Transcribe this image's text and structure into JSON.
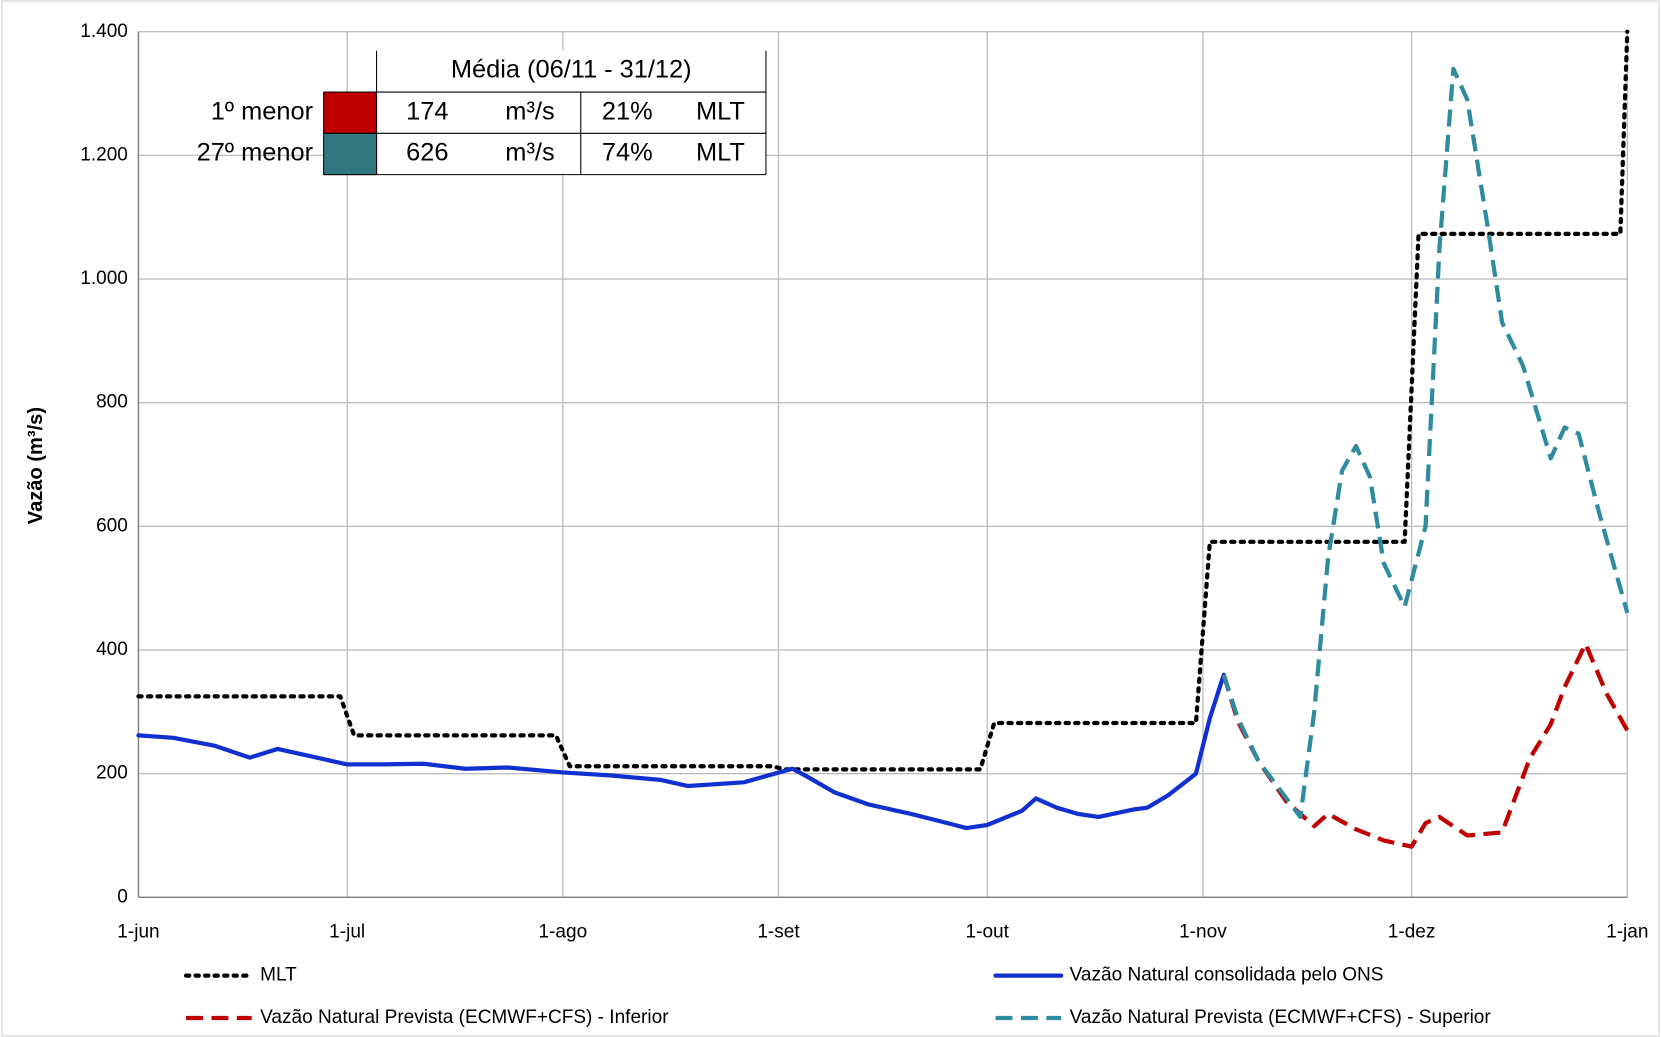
{
  "chart_data": {
    "type": "line",
    "y_label": "Vazão (m³/s)",
    "xlim": [
      0,
      214
    ],
    "xticks": [
      {
        "value": 0,
        "label": "1-jun"
      },
      {
        "value": 30,
        "label": "1-jul"
      },
      {
        "value": 61,
        "label": "1-ago"
      },
      {
        "value": 92,
        "label": "1-set"
      },
      {
        "value": 122,
        "label": "1-out"
      },
      {
        "value": 153,
        "label": "1-nov"
      },
      {
        "value": 183,
        "label": "1-dez"
      },
      {
        "value": 214,
        "label": "1-jan"
      }
    ],
    "ylim": [
      0,
      1400
    ],
    "yticks": [
      0,
      200,
      400,
      600,
      800,
      {
        "value": 1000,
        "label": "1.000"
      },
      {
        "value": 1200,
        "label": "1.200"
      },
      {
        "value": 1400,
        "label": "1.400"
      }
    ],
    "grid": true,
    "series": [
      {
        "name": "MLT",
        "color": "#000000",
        "line_style": "dotted",
        "x": [
          0,
          29,
          31,
          60,
          62,
          91,
          93,
          121,
          123,
          152,
          154,
          182,
          184,
          213,
          214
        ],
        "values": [
          325,
          325,
          262,
          262,
          212,
          212,
          207,
          207,
          282,
          282,
          575,
          575,
          1073,
          1073,
          1400
        ]
      },
      {
        "name": "Vazão Natural consolidada pelo ONS",
        "color": "#1030d0",
        "line_style": "solid",
        "x": [
          0,
          5,
          11,
          16,
          20,
          26,
          30,
          35,
          41,
          47,
          53,
          61,
          68,
          75,
          79,
          87,
          94,
          96,
          100,
          105,
          111,
          117,
          119,
          122,
          127,
          129,
          132,
          135,
          138,
          143,
          145,
          148,
          152,
          154,
          156
        ],
        "values": [
          262,
          258,
          245,
          226,
          240,
          225,
          215,
          215,
          216,
          208,
          210,
          202,
          197,
          190,
          180,
          186,
          208,
          196,
          170,
          150,
          135,
          118,
          112,
          117,
          140,
          160,
          145,
          135,
          130,
          142,
          145,
          165,
          200,
          290,
          360
        ]
      },
      {
        "name": "Vazão Natural Prevista (ECMWF+CFS) - Inferior",
        "color": "#c00000",
        "line_style": "dashed",
        "x": [
          156,
          158,
          161,
          165,
          169,
          171,
          175,
          179,
          183,
          185,
          187,
          191,
          196,
          200,
          203,
          205,
          208,
          211,
          214
        ],
        "values": [
          360,
          285,
          220,
          155,
          115,
          135,
          110,
          92,
          82,
          120,
          130,
          100,
          105,
          225,
          280,
          340,
          410,
          330,
          270
        ]
      },
      {
        "name": "Vazão Natural Prevista (ECMWF+CFS) - Superior",
        "color": "#2e8ba0",
        "line_style": "dashed",
        "x": [
          156,
          158,
          161,
          165,
          167,
          169,
          171,
          173,
          175,
          177,
          179,
          182,
          185,
          187,
          189,
          191,
          194,
          196,
          199,
          203,
          205,
          207,
          210,
          214
        ],
        "values": [
          360,
          290,
          220,
          160,
          130,
          300,
          550,
          690,
          730,
          680,
          540,
          470,
          600,
          1050,
          1340,
          1290,
          1080,
          930,
          860,
          710,
          760,
          750,
          620,
          460
        ]
      }
    ],
    "table": {
      "header": "Média (06/11 - 31/12)",
      "rows": [
        {
          "label": "1º menor",
          "color": "#c00000",
          "cells": [
            "174",
            "m³/s",
            "21%",
            "MLT"
          ]
        },
        {
          "label": "27º menor",
          "color": "#31777f",
          "cells": [
            "626",
            "m³/s",
            "74%",
            "MLT"
          ]
        }
      ]
    }
  }
}
